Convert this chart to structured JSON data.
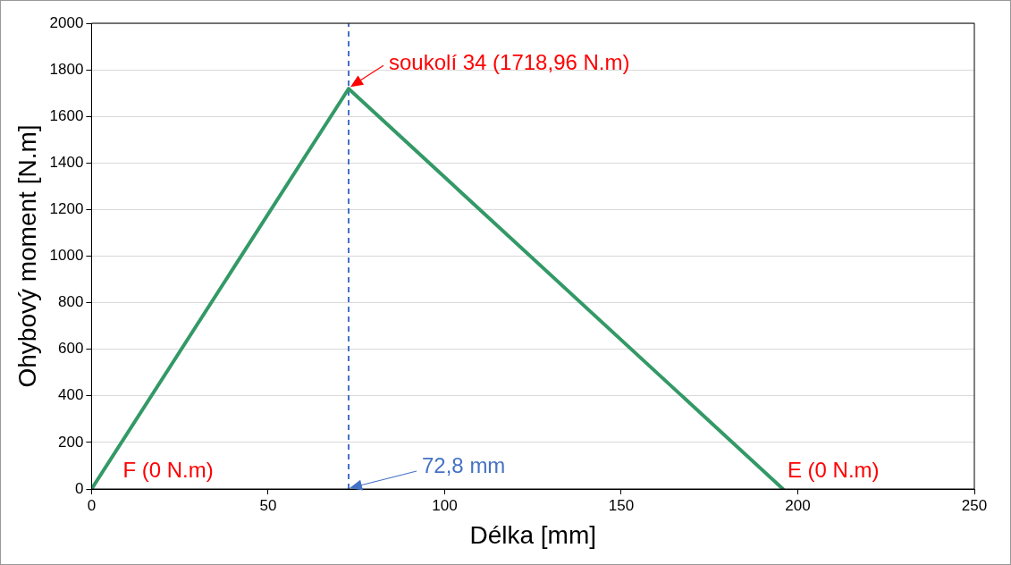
{
  "chart_data": {
    "type": "line",
    "xlabel": "Délka [mm]",
    "ylabel": "Ohybový moment [N.m]",
    "x": [
      0,
      72.8,
      195.8
    ],
    "series": [
      {
        "color": "#339966",
        "values": [
          0,
          1718.96,
          0
        ]
      }
    ],
    "xlim": [
      0,
      250
    ],
    "xticks": [
      0,
      50,
      100,
      150,
      200,
      250
    ],
    "ylim": [
      0,
      2000
    ],
    "yticks": [
      0,
      200,
      400,
      600,
      800,
      1000,
      1200,
      1400,
      1600,
      1800,
      2000
    ],
    "grid": "y",
    "legend": false,
    "marker": "none",
    "line_style": "solid",
    "ref_lines": [
      {
        "axis": "x",
        "value": 72.8,
        "label": "72,8 mm",
        "color": "#4472c4",
        "line_style": "dashed"
      }
    ],
    "annotations": [
      {
        "text": "soukolí 34 (1718,96 N.m)",
        "x": 72.8,
        "y": 1718.96
      },
      {
        "text": "F (0 N.m)",
        "x": 0,
        "y": 0
      },
      {
        "text": "E (0 N.m)",
        "x": 195.8,
        "y": 0
      }
    ]
  }
}
